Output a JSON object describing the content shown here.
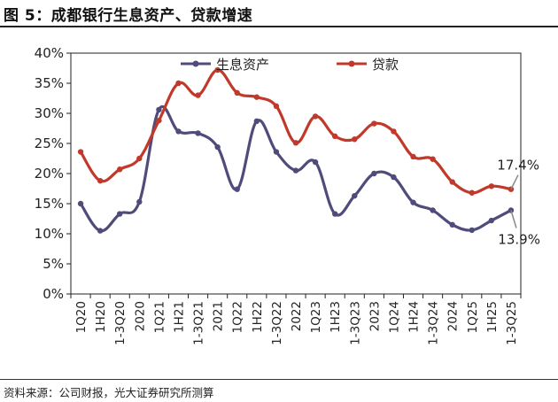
{
  "header": {
    "title": "图 5：成都银行生息资产、贷款增速"
  },
  "footer": {
    "source": "资料来源：公司财报，光大证券研究所测算"
  },
  "chart_data": {
    "type": "line",
    "categories": [
      "1Q20",
      "1H20",
      "1-3Q20",
      "2020",
      "1Q21",
      "1H21",
      "1-3Q21",
      "2021",
      "1Q22",
      "1H22",
      "1-3Q22",
      "2022",
      "1Q23",
      "1H23",
      "1-3Q23",
      "2023",
      "1Q24",
      "1H24",
      "1-3Q24",
      "2024",
      "1Q25",
      "1H25",
      "1-3Q25"
    ],
    "ylim": [
      0,
      40
    ],
    "yticks": [
      "0%",
      "5%",
      "10%",
      "15%",
      "20%",
      "25%",
      "30%",
      "35%",
      "40%"
    ],
    "series": [
      {
        "name": "生息资产",
        "color": "#4f4c7c",
        "values": [
          15.0,
          10.5,
          13.3,
          15.3,
          30.6,
          27.0,
          26.7,
          24.4,
          17.4,
          28.7,
          23.6,
          20.5,
          21.9,
          13.3,
          16.3,
          20.0,
          19.4,
          15.2,
          13.9,
          11.5,
          10.6,
          12.2,
          13.9
        ]
      },
      {
        "name": "贷款",
        "color": "#c0392b",
        "values": [
          23.6,
          18.8,
          20.7,
          22.5,
          28.8,
          35.0,
          33.0,
          37.2,
          33.4,
          32.7,
          31.2,
          25.1,
          29.5,
          26.2,
          25.7,
          28.3,
          27.0,
          22.8,
          22.4,
          18.6,
          16.8,
          17.9,
          17.4
        ]
      }
    ],
    "annotations": [
      {
        "text": "17.4%",
        "series": "贷款"
      },
      {
        "text": "13.9%",
        "series": "生息资产"
      }
    ],
    "legend": "top"
  }
}
